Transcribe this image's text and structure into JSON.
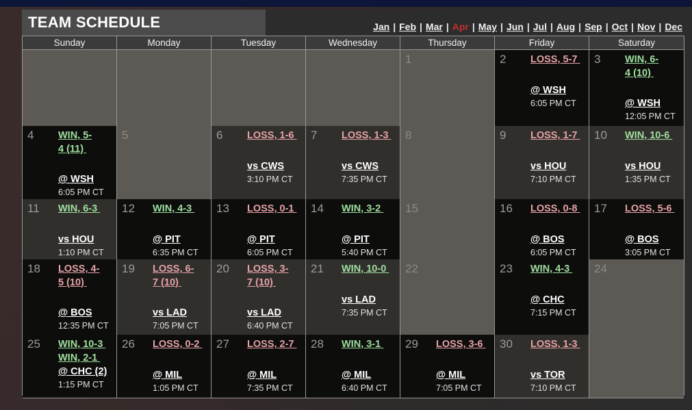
{
  "header": {
    "title": "TEAM SCHEDULE"
  },
  "month_nav": {
    "months": [
      "Jan",
      "Feb",
      "Mar",
      "Apr",
      "May",
      "Jun",
      "Jul",
      "Aug",
      "Sep",
      "Oct",
      "Nov",
      "Dec"
    ],
    "current": "Apr",
    "separator": "|"
  },
  "colors": {
    "win_text": "#9fdf9f",
    "loss_text": "#e6a2a7",
    "current_month": "#c13030",
    "away_cell_bg": "#0d0d0c",
    "home_cell_bg": "#312f2c",
    "empty_cell_bg": "#5d5a55"
  },
  "calendar": {
    "day_headers": [
      "Sunday",
      "Monday",
      "Tuesday",
      "Wednesday",
      "Thursday",
      "Friday",
      "Saturday"
    ],
    "weeks": [
      [
        {
          "type": "empty"
        },
        {
          "type": "empty"
        },
        {
          "type": "empty"
        },
        {
          "type": "empty"
        },
        {
          "day": "1",
          "type": "empty"
        },
        {
          "day": "2",
          "type": "away",
          "games": [
            {
              "lines": [
                "LOSS, 5-7"
              ],
              "outcome": "loss"
            }
          ],
          "opponent": "@ WSH",
          "time": "6:05 PM CT"
        },
        {
          "day": "3",
          "type": "away",
          "games": [
            {
              "lines": [
                "WIN, 6-4",
                "(10)"
              ],
              "outcome": "win"
            }
          ],
          "opponent": "@ WSH",
          "time": "12:05 PM CT"
        }
      ],
      [
        {
          "day": "4",
          "type": "away",
          "games": [
            {
              "lines": [
                "WIN, 5-4",
                "(11)"
              ],
              "outcome": "win"
            }
          ],
          "opponent": "@ WSH",
          "time": "6:05 PM CT"
        },
        {
          "day": "5",
          "type": "empty"
        },
        {
          "day": "6",
          "type": "home",
          "games": [
            {
              "lines": [
                "LOSS, 1-6"
              ],
              "outcome": "loss"
            }
          ],
          "opponent": "vs CWS",
          "time": "3:10 PM CT"
        },
        {
          "day": "7",
          "type": "home",
          "games": [
            {
              "lines": [
                "LOSS, 1-3"
              ],
              "outcome": "loss"
            }
          ],
          "opponent": "vs CWS",
          "time": "7:35 PM CT"
        },
        {
          "day": "8",
          "type": "empty"
        },
        {
          "day": "9",
          "type": "home",
          "games": [
            {
              "lines": [
                "LOSS, 1-7"
              ],
              "outcome": "loss"
            }
          ],
          "opponent": "vs HOU",
          "time": "7:10 PM CT"
        },
        {
          "day": "10",
          "type": "home",
          "games": [
            {
              "lines": [
                "WIN, 10-6"
              ],
              "outcome": "win"
            }
          ],
          "opponent": "vs HOU",
          "time": "1:35 PM CT"
        }
      ],
      [
        {
          "day": "11",
          "type": "home",
          "games": [
            {
              "lines": [
                "WIN, 6-3"
              ],
              "outcome": "win"
            }
          ],
          "opponent": "vs HOU",
          "time": "1:10 PM CT"
        },
        {
          "day": "12",
          "type": "away",
          "games": [
            {
              "lines": [
                "WIN, 4-3"
              ],
              "outcome": "win"
            }
          ],
          "opponent": "@ PIT",
          "time": "6:35 PM CT"
        },
        {
          "day": "13",
          "type": "away",
          "games": [
            {
              "lines": [
                "LOSS, 0-1"
              ],
              "outcome": "loss"
            }
          ],
          "opponent": "@ PIT",
          "time": "6:05 PM CT"
        },
        {
          "day": "14",
          "type": "away",
          "games": [
            {
              "lines": [
                "WIN, 3-2"
              ],
              "outcome": "win"
            }
          ],
          "opponent": "@ PIT",
          "time": "5:40 PM CT"
        },
        {
          "day": "15",
          "type": "empty"
        },
        {
          "day": "16",
          "type": "away",
          "games": [
            {
              "lines": [
                "LOSS, 0-8"
              ],
              "outcome": "loss"
            }
          ],
          "opponent": "@ BOS",
          "time": "6:05 PM CT"
        },
        {
          "day": "17",
          "type": "away",
          "games": [
            {
              "lines": [
                "LOSS, 5-6"
              ],
              "outcome": "loss"
            }
          ],
          "opponent": "@ BOS",
          "time": "3:05 PM CT"
        }
      ],
      [
        {
          "day": "18",
          "type": "away",
          "games": [
            {
              "lines": [
                "LOSS, 4-5",
                "(10)"
              ],
              "outcome": "loss"
            }
          ],
          "opponent": "@ BOS",
          "time": "12:35 PM CT"
        },
        {
          "day": "19",
          "type": "home",
          "games": [
            {
              "lines": [
                "LOSS, 6-7",
                "(10)"
              ],
              "outcome": "loss"
            }
          ],
          "opponent": "vs LAD",
          "time": "7:05 PM CT"
        },
        {
          "day": "20",
          "type": "home",
          "games": [
            {
              "lines": [
                "LOSS, 3-7",
                "(10)"
              ],
              "outcome": "loss"
            }
          ],
          "opponent": "vs LAD",
          "time": "6:40 PM CT"
        },
        {
          "day": "21",
          "type": "home",
          "games": [
            {
              "lines": [
                "WIN, 10-0"
              ],
              "outcome": "win"
            }
          ],
          "opponent": "vs LAD",
          "time": "7:35 PM CT"
        },
        {
          "day": "22",
          "type": "empty"
        },
        {
          "day": "23",
          "type": "away",
          "games": [
            {
              "lines": [
                "WIN, 4-3"
              ],
              "outcome": "win"
            }
          ],
          "opponent": "@ CHC",
          "time": "7:15 PM CT"
        },
        {
          "day": "24",
          "type": "empty"
        }
      ],
      [
        {
          "day": "25",
          "type": "away",
          "games": [
            {
              "lines": [
                "WIN, 10-3"
              ],
              "outcome": "win"
            },
            {
              "lines": [
                "WIN, 2-1"
              ],
              "outcome": "win"
            }
          ],
          "opponent": "@ CHC (2)",
          "time": "1:15 PM CT"
        },
        {
          "day": "26",
          "type": "away",
          "games": [
            {
              "lines": [
                "LOSS, 0-2"
              ],
              "outcome": "loss"
            }
          ],
          "opponent": "@ MIL",
          "time": "1:05 PM CT"
        },
        {
          "day": "27",
          "type": "away",
          "games": [
            {
              "lines": [
                "LOSS, 2-7"
              ],
              "outcome": "loss"
            }
          ],
          "opponent": "@ MIL",
          "time": "7:35 PM CT"
        },
        {
          "day": "28",
          "type": "away",
          "games": [
            {
              "lines": [
                "WIN, 3-1"
              ],
              "outcome": "win"
            }
          ],
          "opponent": "@ MIL",
          "time": "6:40 PM CT"
        },
        {
          "day": "29",
          "type": "away",
          "games": [
            {
              "lines": [
                "LOSS, 3-6"
              ],
              "outcome": "loss"
            }
          ],
          "opponent": "@ MIL",
          "time": "7:05 PM CT"
        },
        {
          "day": "30",
          "type": "home",
          "games": [
            {
              "lines": [
                "LOSS, 1-3"
              ],
              "outcome": "loss"
            }
          ],
          "opponent": "vs TOR",
          "time": "7:10 PM CT"
        },
        {
          "type": "empty"
        }
      ]
    ]
  }
}
